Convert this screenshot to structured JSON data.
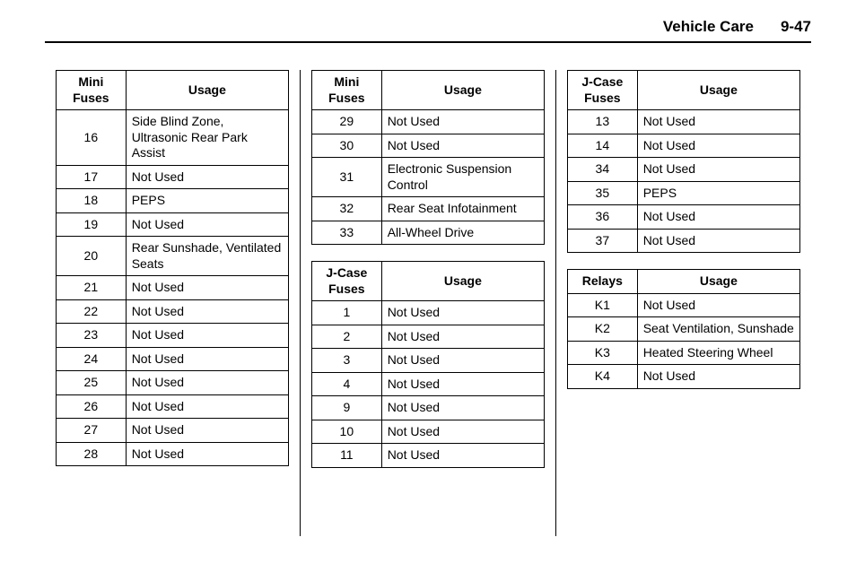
{
  "header": {
    "section": "Vehicle Care",
    "page": "9-47"
  },
  "tables": {
    "mini1": {
      "head": [
        "Mini Fuses",
        "Usage"
      ],
      "rows": [
        [
          "16",
          "Side Blind Zone, Ultrasonic Rear Park Assist"
        ],
        [
          "17",
          "Not Used"
        ],
        [
          "18",
          "PEPS"
        ],
        [
          "19",
          "Not Used"
        ],
        [
          "20",
          "Rear Sunshade, Ventilated Seats"
        ],
        [
          "21",
          "Not Used"
        ],
        [
          "22",
          "Not Used"
        ],
        [
          "23",
          "Not Used"
        ],
        [
          "24",
          "Not Used"
        ],
        [
          "25",
          "Not Used"
        ],
        [
          "26",
          "Not Used"
        ],
        [
          "27",
          "Not Used"
        ],
        [
          "28",
          "Not Used"
        ]
      ]
    },
    "mini2": {
      "head": [
        "Mini Fuses",
        "Usage"
      ],
      "rows": [
        [
          "29",
          "Not Used"
        ],
        [
          "30",
          "Not Used"
        ],
        [
          "31",
          "Electronic Suspension Control"
        ],
        [
          "32",
          "Rear Seat Infotainment"
        ],
        [
          "33",
          "All-Wheel Drive"
        ]
      ]
    },
    "jcase1": {
      "head": [
        "J-Case Fuses",
        "Usage"
      ],
      "rows": [
        [
          "1",
          "Not Used"
        ],
        [
          "2",
          "Not Used"
        ],
        [
          "3",
          "Not Used"
        ],
        [
          "4",
          "Not Used"
        ],
        [
          "9",
          "Not Used"
        ],
        [
          "10",
          "Not Used"
        ],
        [
          "11",
          "Not Used"
        ]
      ]
    },
    "jcase2": {
      "head": [
        "J-Case Fuses",
        "Usage"
      ],
      "rows": [
        [
          "13",
          "Not Used"
        ],
        [
          "14",
          "Not Used"
        ],
        [
          "34",
          "Not Used"
        ],
        [
          "35",
          "PEPS"
        ],
        [
          "36",
          "Not Used"
        ],
        [
          "37",
          "Not Used"
        ]
      ]
    },
    "relays": {
      "head": [
        "Relays",
        "Usage"
      ],
      "rows": [
        [
          "K1",
          "Not Used"
        ],
        [
          "K2",
          "Seat Ventilation, Sunshade"
        ],
        [
          "K3",
          "Heated Steering Wheel"
        ],
        [
          "K4",
          "Not Used"
        ]
      ]
    }
  }
}
